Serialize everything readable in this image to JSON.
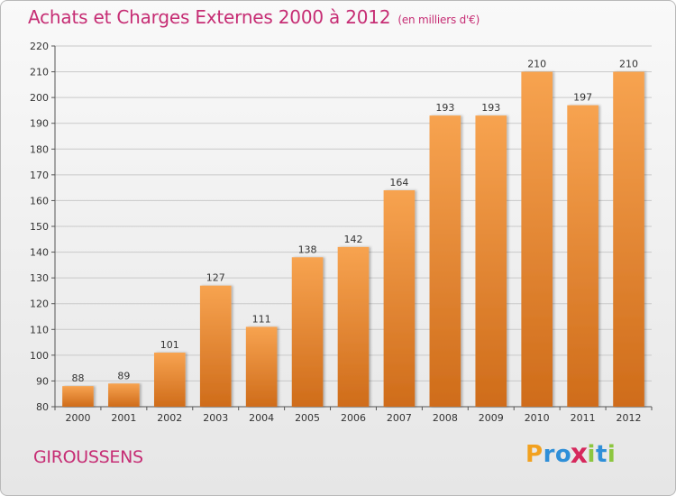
{
  "title": "Achats et Charges Externes 2000 à 2012",
  "subtitle": "(en milliers d'€)",
  "commune": "GIROUSSENS",
  "logo": {
    "letters": [
      "P",
      "r",
      "o",
      "x",
      "i",
      "t",
      "i"
    ],
    "colors": [
      "#f2a11f",
      "#2f8fd8",
      "#2f8fd8",
      "#d6285c",
      "#8cc63f",
      "#2f8fd8",
      "#8cc63f"
    ]
  },
  "chart_data": {
    "type": "bar",
    "categories": [
      "2000",
      "2001",
      "2002",
      "2003",
      "2004",
      "2005",
      "2006",
      "2007",
      "2008",
      "2009",
      "2010",
      "2011",
      "2012"
    ],
    "values": [
      88,
      89,
      101,
      127,
      111,
      138,
      142,
      164,
      193,
      193,
      210,
      197,
      210
    ],
    "title": "Achats et Charges Externes 2000 à 2012",
    "subtitle": "(en milliers d'€)",
    "xlabel": "",
    "ylabel": "",
    "ylim": [
      80,
      220
    ],
    "yticks": [
      80,
      90,
      100,
      110,
      120,
      130,
      140,
      150,
      160,
      170,
      180,
      190,
      200,
      210,
      220
    ],
    "grid": true,
    "bar_color_top": "#f7a350",
    "bar_color_bottom": "#cf6c1a"
  }
}
